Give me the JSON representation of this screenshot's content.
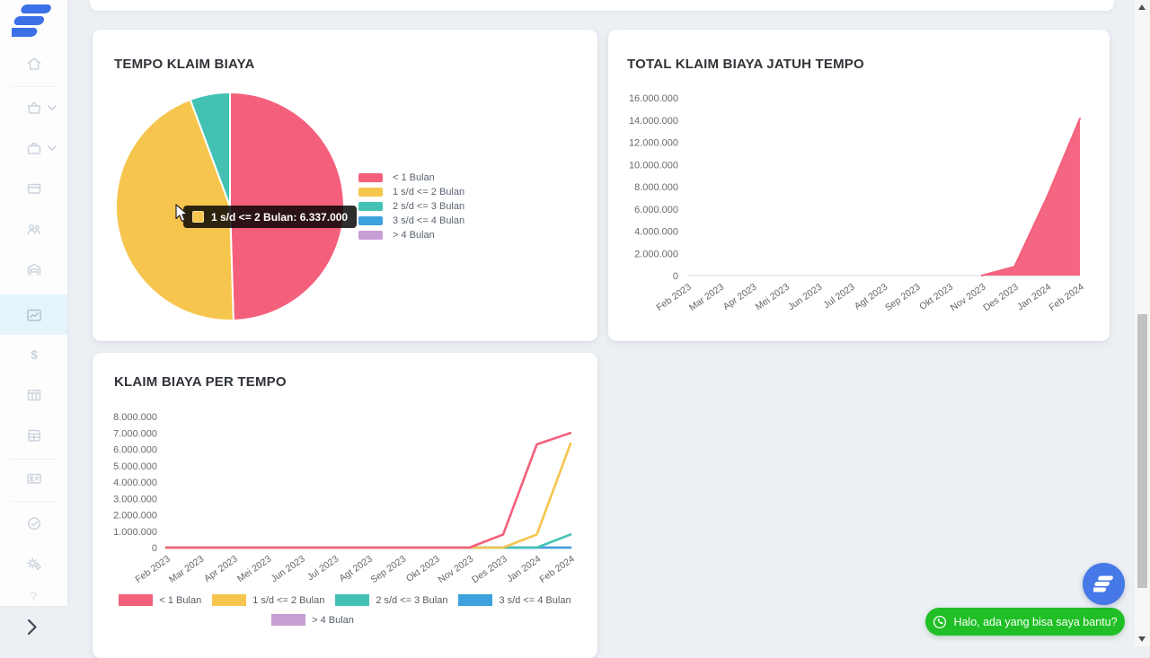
{
  "sidebar": {
    "active_item": "reports-chart",
    "icons": [
      "home",
      "shopping-cart",
      "briefcase",
      "credit-card",
      "users",
      "warehouse",
      "chart-line",
      "dollar",
      "table-list",
      "cash-register",
      "id-card",
      "check-circle",
      "settings-gears",
      "help"
    ],
    "expandable_items": [
      "shopping-cart",
      "briefcase"
    ],
    "collapse_icon": "chevron-right"
  },
  "cards": {
    "pie_card": {
      "tooltip": {
        "label": "1 s/d <= 2 Bulan",
        "value": "6.337.000",
        "text": "1 s/d <= 2 Bulan: 6.337.000",
        "marker_color": "#F6C54D"
      }
    }
  },
  "chat": {
    "bubble_text": "Halo, ada yang bisa saya bantu?",
    "icons": [
      "whatsapp-icon",
      "brand-logo"
    ]
  },
  "scrollbar": {
    "icons": [
      "up-arrow",
      "down-arrow"
    ]
  },
  "chart_data": [
    {
      "type": "pie",
      "title": "TEMPO KLAIM BIAYA",
      "labels": [
        "< 1 Bulan",
        "1 s/d <= 2 Bulan",
        "2 s/d <= 3 Bulan",
        "3 s/d <= 4 Bulan",
        "> 4 Bulan"
      ],
      "values": [
        7000000,
        6337000,
        800000,
        0,
        0
      ],
      "colors": [
        "#F4607C",
        "#F6C54D",
        "#43C2B3",
        "#3DA1DD",
        "#C79ED6"
      ],
      "legend_position": "right"
    },
    {
      "type": "area",
      "title": "TOTAL KLAIM BIAYA JATUH TEMPO",
      "x": [
        "Feb 2023",
        "Mar 2023",
        "Apr 2023",
        "Mei 2023",
        "Jun 2023",
        "Jul 2023",
        "Agt 2023",
        "Sep 2023",
        "Okt 2023",
        "Nov 2023",
        "Des 2023",
        "Jan 2024",
        "Feb 2024"
      ],
      "values": [
        0,
        0,
        0,
        0,
        0,
        0,
        0,
        0,
        0,
        0,
        800000,
        7100000,
        14137000
      ],
      "color": "#F4607C",
      "ylim": [
        0,
        16000000
      ],
      "ytick_step": 2000000,
      "grid": false,
      "legend_position": "none"
    },
    {
      "type": "line",
      "title": "KLAIM BIAYA PER TEMPO",
      "x": [
        "Feb 2023",
        "Mar 2023",
        "Apr 2023",
        "Mei 2023",
        "Jun 2023",
        "Jul 2023",
        "Agt 2023",
        "Sep 2023",
        "Okt 2023",
        "Nov 2023",
        "Des 2023",
        "Jan 2024",
        "Feb 2024"
      ],
      "series": [
        {
          "name": "< 1 Bulan",
          "color": "#F4607C",
          "values": [
            0,
            0,
            0,
            0,
            0,
            0,
            0,
            0,
            0,
            0,
            800000,
            6300000,
            7000000
          ]
        },
        {
          "name": "1 s/d <= 2 Bulan",
          "color": "#F6C54D",
          "values": [
            0,
            0,
            0,
            0,
            0,
            0,
            0,
            0,
            0,
            0,
            0,
            800000,
            6337000
          ]
        },
        {
          "name": "2 s/d <= 3 Bulan",
          "color": "#43C2B3",
          "values": [
            0,
            0,
            0,
            0,
            0,
            0,
            0,
            0,
            0,
            0,
            0,
            0,
            800000
          ]
        },
        {
          "name": "3 s/d <= 4 Bulan",
          "color": "#3DA1DD",
          "values": [
            0,
            0,
            0,
            0,
            0,
            0,
            0,
            0,
            0,
            0,
            0,
            0,
            0
          ]
        },
        {
          "name": "> 4 Bulan",
          "color": "#C79ED6",
          "values": [
            0,
            0,
            0,
            0,
            0,
            0,
            0,
            0,
            0,
            0,
            0,
            0,
            0
          ]
        }
      ],
      "ylim": [
        0,
        8000000
      ],
      "ytick_step": 1000000,
      "grid": false,
      "legend_position": "bottom"
    }
  ]
}
